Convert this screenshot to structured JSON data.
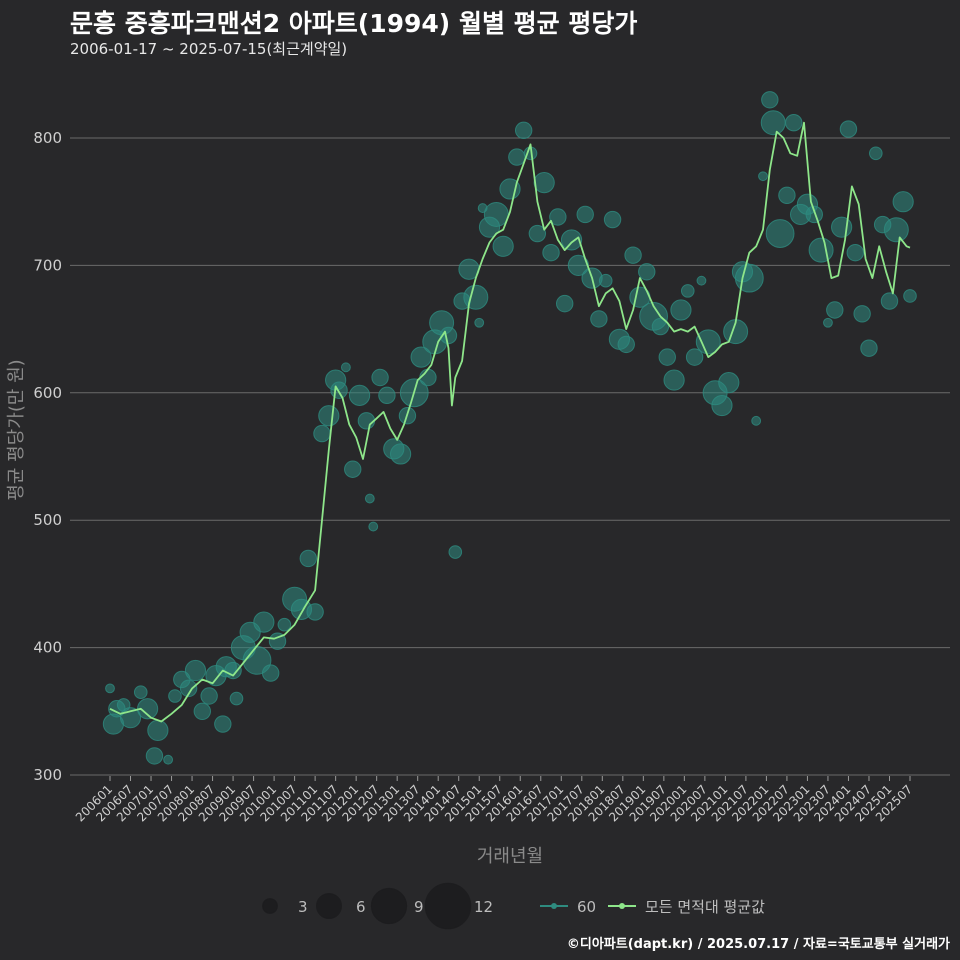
{
  "header": {
    "title": "문흥 중흥파크맨션2 아파트(1994) 월별 평균 평당가",
    "subtitle": "2006-01-17 ~ 2025-07-15(최근계약일)"
  },
  "footer": {
    "source": "©디아파트(dapt.kr) / 2025.07.17 / 자료=국토교통부 실거래가"
  },
  "colors": {
    "background": "#28282a",
    "grid": "#6a6a6a",
    "line": "#8ee68a",
    "bubble": "#2e8b7f"
  },
  "chart_data": {
    "type": "line",
    "xlabel": "거래년월",
    "ylabel": "평균 평당가(만 원)",
    "ylim": [
      300,
      850
    ],
    "yticks": [
      300,
      400,
      500,
      600,
      700,
      800
    ],
    "grid": true,
    "x_start": "2006-01",
    "x_end": "2025-07",
    "x_tick_labels": [
      "200601",
      "200607",
      "200701",
      "200707",
      "200801",
      "200807",
      "200901",
      "200907",
      "201001",
      "201007",
      "201101",
      "201107",
      "201201",
      "201207",
      "201301",
      "201307",
      "201401",
      "201407",
      "201501",
      "201507",
      "201601",
      "201607",
      "201701",
      "201707",
      "201801",
      "201807",
      "201901",
      "201907",
      "202001",
      "202007",
      "202101",
      "202107",
      "202201",
      "202207",
      "202301",
      "202307",
      "202401",
      "202407",
      "202501",
      "202507"
    ],
    "size_legend": [
      3,
      6,
      9,
      12
    ],
    "series": [
      {
        "name": "모든 면적대 평균값",
        "kind": "line",
        "points": [
          [
            "2006-01",
            352
          ],
          [
            "2006-04",
            348
          ],
          [
            "2006-07",
            350
          ],
          [
            "2006-10",
            352
          ],
          [
            "2007-01",
            345
          ],
          [
            "2007-04",
            342
          ],
          [
            "2007-07",
            348
          ],
          [
            "2007-10",
            355
          ],
          [
            "2008-01",
            368
          ],
          [
            "2008-04",
            375
          ],
          [
            "2008-07",
            372
          ],
          [
            "2008-10",
            382
          ],
          [
            "2009-01",
            378
          ],
          [
            "2009-04",
            388
          ],
          [
            "2009-07",
            398
          ],
          [
            "2009-10",
            408
          ],
          [
            "2010-01",
            407
          ],
          [
            "2010-04",
            410
          ],
          [
            "2010-07",
            418
          ],
          [
            "2010-10",
            432
          ],
          [
            "2011-01",
            445
          ],
          [
            "2011-03",
            500
          ],
          [
            "2011-05",
            555
          ],
          [
            "2011-07",
            605
          ],
          [
            "2011-09",
            596
          ],
          [
            "2011-11",
            575
          ],
          [
            "2012-01",
            565
          ],
          [
            "2012-03",
            548
          ],
          [
            "2012-05",
            575
          ],
          [
            "2012-07",
            580
          ],
          [
            "2012-09",
            585
          ],
          [
            "2012-11",
            572
          ],
          [
            "2013-01",
            563
          ],
          [
            "2013-03",
            575
          ],
          [
            "2013-05",
            592
          ],
          [
            "2013-07",
            610
          ],
          [
            "2013-09",
            615
          ],
          [
            "2013-11",
            622
          ],
          [
            "2014-01",
            640
          ],
          [
            "2014-03",
            648
          ],
          [
            "2014-04",
            635
          ],
          [
            "2014-05",
            590
          ],
          [
            "2014-06",
            612
          ],
          [
            "2014-08",
            625
          ],
          [
            "2014-10",
            670
          ],
          [
            "2014-12",
            690
          ],
          [
            "2015-02",
            705
          ],
          [
            "2015-04",
            718
          ],
          [
            "2015-06",
            725
          ],
          [
            "2015-08",
            728
          ],
          [
            "2015-10",
            742
          ],
          [
            "2015-12",
            765
          ],
          [
            "2016-02",
            780
          ],
          [
            "2016-04",
            795
          ],
          [
            "2016-06",
            750
          ],
          [
            "2016-08",
            728
          ],
          [
            "2016-10",
            735
          ],
          [
            "2016-12",
            720
          ],
          [
            "2017-02",
            712
          ],
          [
            "2017-04",
            718
          ],
          [
            "2017-06",
            722
          ],
          [
            "2017-08",
            705
          ],
          [
            "2017-10",
            690
          ],
          [
            "2017-12",
            668
          ],
          [
            "2018-02",
            678
          ],
          [
            "2018-04",
            682
          ],
          [
            "2018-06",
            672
          ],
          [
            "2018-08",
            650
          ],
          [
            "2018-10",
            665
          ],
          [
            "2018-12",
            690
          ],
          [
            "2019-02",
            680
          ],
          [
            "2019-04",
            668
          ],
          [
            "2019-06",
            660
          ],
          [
            "2019-08",
            655
          ],
          [
            "2019-10",
            648
          ],
          [
            "2019-12",
            650
          ],
          [
            "2020-02",
            648
          ],
          [
            "2020-04",
            652
          ],
          [
            "2020-06",
            640
          ],
          [
            "2020-08",
            628
          ],
          [
            "2020-10",
            632
          ],
          [
            "2020-12",
            638
          ],
          [
            "2021-02",
            640
          ],
          [
            "2021-04",
            655
          ],
          [
            "2021-06",
            690
          ],
          [
            "2021-08",
            710
          ],
          [
            "2021-10",
            715
          ],
          [
            "2021-12",
            728
          ],
          [
            "2022-02",
            775
          ],
          [
            "2022-04",
            805
          ],
          [
            "2022-06",
            800
          ],
          [
            "2022-08",
            788
          ],
          [
            "2022-10",
            786
          ],
          [
            "2022-12",
            812
          ],
          [
            "2023-02",
            750
          ],
          [
            "2023-04",
            735
          ],
          [
            "2023-06",
            718
          ],
          [
            "2023-08",
            690
          ],
          [
            "2023-10",
            692
          ],
          [
            "2023-12",
            720
          ],
          [
            "2024-02",
            762
          ],
          [
            "2024-04",
            748
          ],
          [
            "2024-06",
            705
          ],
          [
            "2024-08",
            690
          ],
          [
            "2024-10",
            715
          ],
          [
            "2024-12",
            695
          ],
          [
            "2025-02",
            678
          ],
          [
            "2025-04",
            722
          ],
          [
            "2025-06",
            715
          ],
          [
            "2025-07",
            714
          ]
        ]
      },
      {
        "name": "60",
        "kind": "bubble",
        "points": [
          [
            "2006-01",
            368,
            1
          ],
          [
            "2006-02",
            340,
            4
          ],
          [
            "2006-03",
            352,
            3
          ],
          [
            "2006-05",
            355,
            2
          ],
          [
            "2006-07",
            345,
            4
          ],
          [
            "2006-10",
            365,
            2
          ],
          [
            "2006-12",
            352,
            4
          ],
          [
            "2007-02",
            315,
            3
          ],
          [
            "2007-03",
            335,
            4
          ],
          [
            "2007-06",
            312,
            1
          ],
          [
            "2007-08",
            362,
            2
          ],
          [
            "2007-10",
            375,
            3
          ],
          [
            "2007-12",
            368,
            3
          ],
          [
            "2008-02",
            382,
            4
          ],
          [
            "2008-04",
            350,
            3
          ],
          [
            "2008-06",
            362,
            3
          ],
          [
            "2008-08",
            378,
            4
          ],
          [
            "2008-10",
            340,
            3
          ],
          [
            "2008-11",
            385,
            4
          ],
          [
            "2009-01",
            382,
            3
          ],
          [
            "2009-02",
            360,
            2
          ],
          [
            "2009-04",
            400,
            5
          ],
          [
            "2009-06",
            412,
            4
          ],
          [
            "2009-08",
            390,
            6
          ],
          [
            "2009-10",
            420,
            4
          ],
          [
            "2009-12",
            380,
            3
          ],
          [
            "2010-02",
            405,
            3
          ],
          [
            "2010-04",
            418,
            2
          ],
          [
            "2010-07",
            438,
            5
          ],
          [
            "2010-09",
            430,
            4
          ],
          [
            "2010-11",
            470,
            3
          ],
          [
            "2011-01",
            428,
            3
          ],
          [
            "2011-03",
            568,
            3
          ],
          [
            "2011-05",
            582,
            4
          ],
          [
            "2011-07",
            610,
            4
          ],
          [
            "2011-08",
            602,
            3
          ],
          [
            "2011-10",
            620,
            1
          ],
          [
            "2011-12",
            540,
            3
          ],
          [
            "2012-02",
            598,
            4
          ],
          [
            "2012-04",
            578,
            3
          ],
          [
            "2012-05",
            517,
            1
          ],
          [
            "2012-06",
            495,
            1
          ],
          [
            "2012-08",
            612,
            3
          ],
          [
            "2012-10",
            598,
            3
          ],
          [
            "2012-12",
            556,
            4
          ],
          [
            "2013-02",
            552,
            4
          ],
          [
            "2013-04",
            582,
            3
          ],
          [
            "2013-06",
            600,
            6
          ],
          [
            "2013-08",
            628,
            4
          ],
          [
            "2013-10",
            612,
            3
          ],
          [
            "2013-12",
            640,
            5
          ],
          [
            "2014-02",
            655,
            5
          ],
          [
            "2014-04",
            645,
            3
          ],
          [
            "2014-06",
            475,
            2
          ],
          [
            "2014-08",
            672,
            3
          ],
          [
            "2014-10",
            697,
            4
          ],
          [
            "2014-12",
            675,
            5
          ],
          [
            "2015-01",
            655,
            1
          ],
          [
            "2015-02",
            745,
            1
          ],
          [
            "2015-04",
            730,
            4
          ],
          [
            "2015-06",
            740,
            5
          ],
          [
            "2015-08",
            715,
            4
          ],
          [
            "2015-10",
            760,
            4
          ],
          [
            "2015-12",
            785,
            3
          ],
          [
            "2016-02",
            806,
            3
          ],
          [
            "2016-04",
            788,
            2
          ],
          [
            "2016-06",
            725,
            3
          ],
          [
            "2016-08",
            765,
            4
          ],
          [
            "2016-10",
            710,
            3
          ],
          [
            "2016-12",
            738,
            3
          ],
          [
            "2017-02",
            670,
            3
          ],
          [
            "2017-04",
            720,
            4
          ],
          [
            "2017-06",
            700,
            4
          ],
          [
            "2017-08",
            740,
            3
          ],
          [
            "2017-10",
            690,
            4
          ],
          [
            "2017-12",
            658,
            3
          ],
          [
            "2018-02",
            688,
            2
          ],
          [
            "2018-04",
            736,
            3
          ],
          [
            "2018-06",
            642,
            4
          ],
          [
            "2018-08",
            638,
            3
          ],
          [
            "2018-10",
            708,
            3
          ],
          [
            "2018-12",
            675,
            4
          ],
          [
            "2019-02",
            695,
            3
          ],
          [
            "2019-04",
            660,
            6
          ],
          [
            "2019-06",
            652,
            3
          ],
          [
            "2019-08",
            628,
            3
          ],
          [
            "2019-10",
            610,
            4
          ],
          [
            "2019-12",
            665,
            4
          ],
          [
            "2020-02",
            680,
            2
          ],
          [
            "2020-04",
            628,
            3
          ],
          [
            "2020-06",
            688,
            1
          ],
          [
            "2020-08",
            640,
            5
          ],
          [
            "2020-10",
            600,
            5
          ],
          [
            "2020-12",
            590,
            4
          ],
          [
            "2021-02",
            608,
            4
          ],
          [
            "2021-04",
            648,
            5
          ],
          [
            "2021-06",
            695,
            4
          ],
          [
            "2021-08",
            690,
            6
          ],
          [
            "2021-10",
            578,
            1
          ],
          [
            "2021-12",
            770,
            1
          ],
          [
            "2022-02",
            830,
            3
          ],
          [
            "2022-03",
            812,
            5
          ],
          [
            "2022-05",
            725,
            6
          ],
          [
            "2022-07",
            755,
            3
          ],
          [
            "2022-09",
            812,
            3
          ],
          [
            "2022-11",
            740,
            4
          ],
          [
            "2023-01",
            748,
            4
          ],
          [
            "2023-03",
            740,
            3
          ],
          [
            "2023-05",
            712,
            5
          ],
          [
            "2023-07",
            655,
            1
          ],
          [
            "2023-09",
            665,
            3
          ],
          [
            "2023-11",
            730,
            4
          ],
          [
            "2024-01",
            807,
            3
          ],
          [
            "2024-03",
            710,
            3
          ],
          [
            "2024-05",
            662,
            3
          ],
          [
            "2024-07",
            635,
            3
          ],
          [
            "2024-09",
            788,
            2
          ],
          [
            "2024-11",
            732,
            3
          ],
          [
            "2025-01",
            672,
            3
          ],
          [
            "2025-03",
            728,
            5
          ],
          [
            "2025-05",
            750,
            4
          ],
          [
            "2025-07",
            676,
            2
          ]
        ]
      }
    ]
  }
}
